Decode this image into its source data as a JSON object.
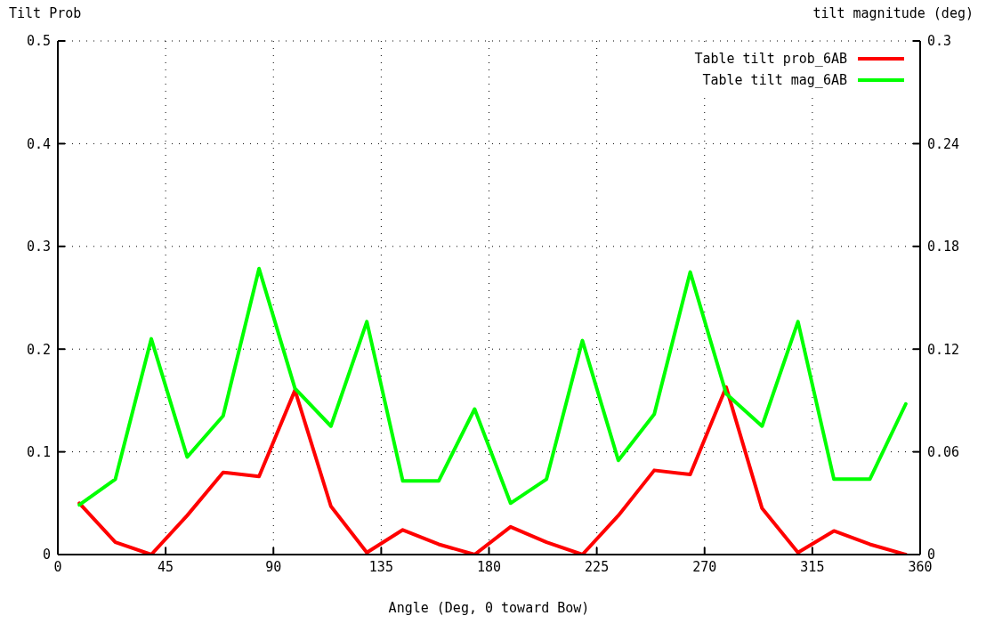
{
  "chart_data": {
    "type": "line",
    "xlabel": "Angle (Deg, 0 toward Bow)",
    "ylabel": "Tilt Prob",
    "y2label": "tilt magnitude (deg)",
    "x": [
      9,
      24,
      39,
      54,
      69,
      84,
      99,
      114,
      129,
      144,
      159,
      174,
      189,
      204,
      219,
      234,
      249,
      264,
      279,
      294,
      309,
      324,
      339,
      354
    ],
    "series": [
      {
        "name": "Table tilt prob_6AB",
        "color": "#ff0000",
        "values": [
          0.05,
          0.012,
          0,
          0.038,
          0.08,
          0.076,
          0.16,
          0.047,
          0.002,
          0.024,
          0.01,
          0,
          0.027,
          0.012,
          0,
          0.038,
          0.082,
          0.078,
          0.163,
          0.045,
          0.002,
          0.023,
          0.01,
          0
        ]
      },
      {
        "name": "Table tilt mag_6AB",
        "color": "#00ff00",
        "axis": "y2",
        "values": [
          0.029,
          0.044,
          0.126,
          0.057,
          0.081,
          0.167,
          0.097,
          0.075,
          0.136,
          0.043,
          0.043,
          0.085,
          0.03,
          0.044,
          0.125,
          0.055,
          0.082,
          0.165,
          0.094,
          0.075,
          0.136,
          0.044,
          0.044,
          0.088
        ]
      }
    ],
    "xlim": [
      0,
      360
    ],
    "xticks": [
      0,
      45,
      90,
      135,
      180,
      225,
      270,
      315,
      360
    ],
    "ylim": [
      0,
      0.5
    ],
    "yticks": [
      0,
      0.1,
      0.2,
      0.3,
      0.4,
      0.5
    ],
    "y2lim": [
      0,
      0.3
    ],
    "y2ticks": [
      0,
      0.06,
      0.12,
      0.18,
      0.24,
      0.3
    ],
    "grid": true,
    "legend": "top right",
    "marker": "none",
    "line_style": "solid"
  }
}
